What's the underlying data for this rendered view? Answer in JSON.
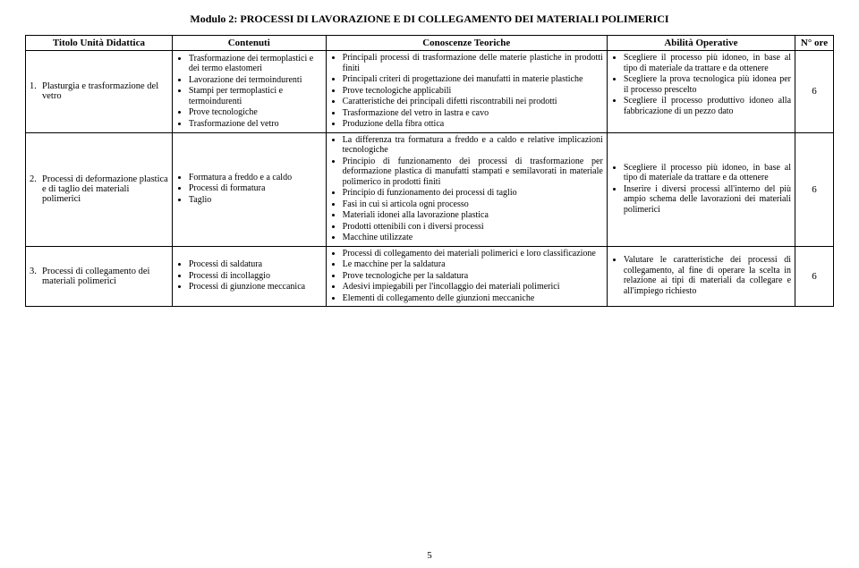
{
  "moduleTitle": "Modulo 2: PROCESSI DI LAVORAZIONE E DI COLLEGAMENTO DEI MATERIALI POLIMERICI",
  "headers": {
    "titolo": "Titolo Unità Didattica",
    "contenuti": "Contenuti",
    "conoscenze": "Conoscenze Teoriche",
    "abilita": "Abilità Operative",
    "ore": "N° ore"
  },
  "rows": [
    {
      "num": "1.",
      "titolo": "Plasturgia e trasformazione del vetro",
      "contenuti": [
        "Trasformazione dei termoplastici e dei termo elastomeri",
        "Lavorazione dei termoindurenti",
        "Stampi per termoplastici e termoindurenti",
        "Prove tecnologiche",
        "Trasformazione del vetro"
      ],
      "conoscenze": [
        "Principali processi di trasformazione delle materie plastiche in prodotti finiti",
        "Principali criteri di progettazione dei manufatti in materie plastiche",
        "Prove tecnologiche applicabili",
        "Caratteristiche dei principali difetti riscontrabili nei prodotti",
        "Trasformazione del vetro in lastra e cavo",
        "Produzione della fibra ottica"
      ],
      "abilita": [
        "Scegliere il processo più idoneo, in base al tipo di materiale da trattare e da ottenere",
        "Scegliere la prova tecnologica più idonea per il processo prescelto",
        "Scegliere il processo produttivo idoneo alla fabbricazione di un pezzo dato"
      ],
      "ore": "6"
    },
    {
      "num": "2.",
      "titolo": "Processi di deformazione plastica e di taglio dei materiali polimerici",
      "contenuti": [
        "Formatura a freddo e a caldo",
        "Processi di formatura",
        "Taglio"
      ],
      "conoscenze": [
        "La differenza tra formatura a freddo e a caldo e relative implicazioni tecnologiche",
        "Principio di funzionamento dei processi di trasformazione per deformazione plastica di manufatti stampati e semilavorati in materiale polimerico in prodotti finiti",
        "Principio di funzionamento dei processi di taglio",
        "Fasi in cui si articola ogni processo",
        "Materiali idonei alla lavorazione plastica",
        "Prodotti ottenibili con i diversi processi",
        "Macchine utilizzate"
      ],
      "abilita": [
        "Scegliere il processo più idoneo, in base al tipo di materiale da trattare e da ottenere",
        "Inserire i diversi processi all'interno del più ampio schema delle lavorazioni dei materiali polimerici"
      ],
      "ore": "6"
    },
    {
      "num": "3.",
      "titolo": "Processi di collegamento dei materiali polimerici",
      "contenuti": [
        "Processi di saldatura",
        "Processi di incollaggio",
        "Processi di giunzione meccanica"
      ],
      "conoscenze": [
        "Processi di collegamento dei materiali polimerici e loro classificazione",
        "Le macchine per la saldatura",
        "Prove tecnologiche per la saldatura",
        "Adesivi impiegabili per l'incollaggio dei materiali polimerici",
        "Elementi di collegamento delle giunzioni meccaniche"
      ],
      "abilita": [
        "Valutare le caratteristiche dei processi di collegamento, al fine di operare la scelta in relazione ai tipi di materiali da collegare e all'impiego richiesto"
      ],
      "ore": "6"
    }
  ],
  "pageNumber": "5"
}
